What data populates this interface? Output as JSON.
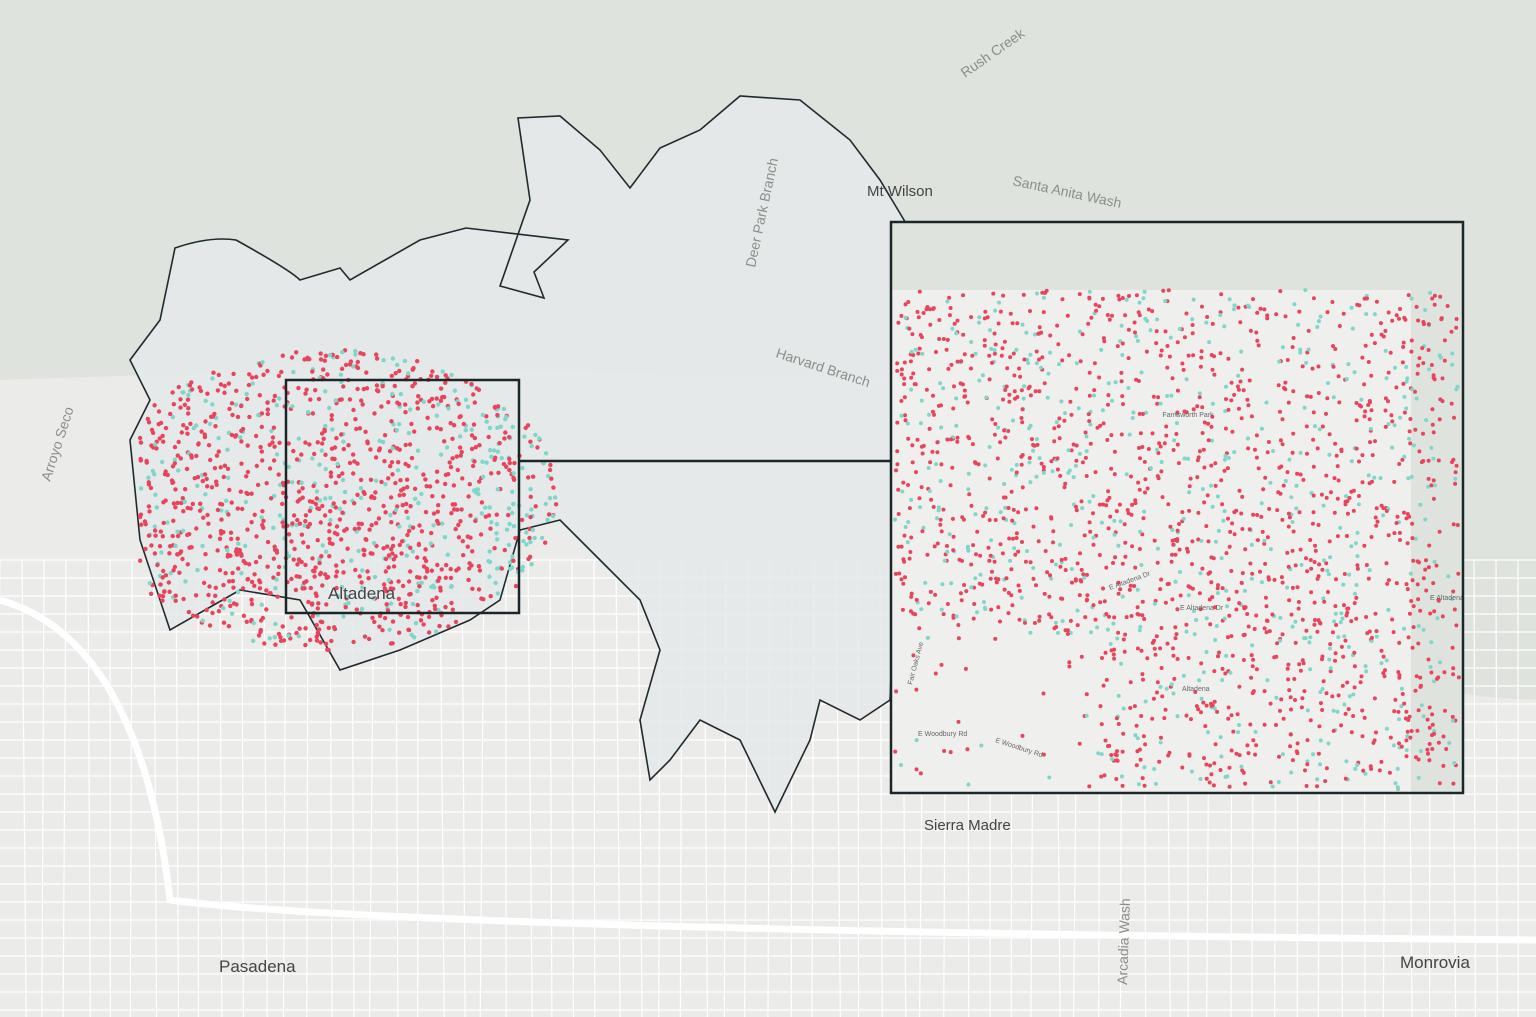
{
  "labels": {
    "rush_creek": "Rush Creek",
    "mt_wilson": "Mt Wilson",
    "santa_anita_wash": "Santa Anita Wash",
    "deer_park_branch": "Deer Park Branch",
    "harvard_branch": "Harvard Branch",
    "arroyo_seco": "Arroyo Seco",
    "altadena": "Altadena",
    "sierra_madre": "Sierra Madre",
    "pasadena": "Pasadena",
    "monrovia": "Monrovia",
    "arcadia_wash": "Arcadia Wash"
  },
  "inset": {
    "park": "Farnsworth Park",
    "street_1": "E Altadena Dr",
    "street_2": "E Altadena Dr",
    "street_3": "E Altadena",
    "place": "Altadena",
    "road_1": "E Woodbury Rd",
    "road_2": "E Woodbury Rd",
    "avenue": "Fair Oaks Ave"
  }
}
